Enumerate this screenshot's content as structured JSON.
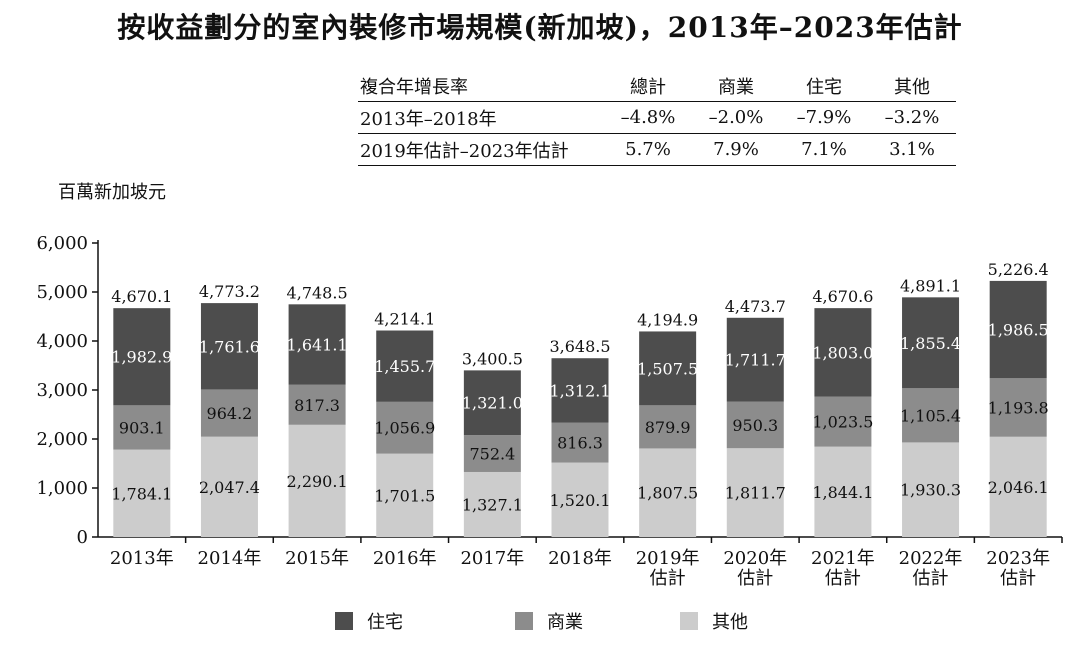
{
  "title": "按收益劃分的室內裝修市場規模(新加坡)，2013年–2023年估計",
  "cagr_table": {
    "headers": [
      "複合年增長率",
      "總計",
      "商業",
      "住宅",
      "其他"
    ],
    "rows": [
      [
        "2013年–2018年",
        "–4.8%",
        "–2.0%",
        "–7.9%",
        "–3.2%"
      ],
      [
        "2019年估計–2023年估計",
        "5.7%",
        "7.9%",
        "7.1%",
        "3.1%"
      ]
    ]
  },
  "colors": {
    "住宅": "#4d4d4d",
    "商業": "#8c8c8c",
    "其他": "#cccccc"
  },
  "chart_data": {
    "type": "bar",
    "stacked": true,
    "ylabel": "百萬新加坡元",
    "ylim": [
      0,
      6000
    ],
    "yticks": [
      "0",
      "1,000",
      "2,000",
      "3,000",
      "4,000",
      "5,000",
      "6,000"
    ],
    "categories": [
      "2013年",
      "2014年",
      "2015年",
      "2016年",
      "2017年",
      "2018年",
      "2019年\n估計",
      "2020年\n估計",
      "2021年\n估計",
      "2022年\n估計",
      "2023年\n估計"
    ],
    "series": [
      {
        "name": "其他",
        "values": [
          1784.1,
          2047.4,
          2290.1,
          1701.5,
          1327.1,
          1520.1,
          1807.5,
          1811.7,
          1844.1,
          1930.3,
          2046.1
        ],
        "labels": [
          "1,784.1",
          "2,047.4",
          "2,290.1",
          "1,701.5",
          "1,327.1",
          "1,520.1",
          "1,807.5",
          "1,811.7",
          "1,844.1",
          "1,930.3",
          "2,046.1"
        ]
      },
      {
        "name": "商業",
        "values": [
          903.1,
          964.2,
          817.3,
          1056.9,
          752.4,
          816.3,
          879.9,
          950.3,
          1023.5,
          1105.4,
          1193.8
        ],
        "labels": [
          "903.1",
          "964.2",
          "817.3",
          "1,056.9",
          "752.4",
          "816.3",
          "879.9",
          "950.3",
          "1,023.5",
          "1,105.4",
          "1,193.8"
        ]
      },
      {
        "name": "住宅",
        "values": [
          1982.9,
          1761.6,
          1641.1,
          1455.7,
          1321.0,
          1312.1,
          1507.5,
          1711.7,
          1803.0,
          1855.4,
          1986.5
        ],
        "labels": [
          "1,982.9",
          "1,761.6",
          "1,641.1",
          "1,455.7",
          "1,321.0",
          "1,312.1",
          "1,507.5",
          "1,711.7",
          "1,803.0",
          "1,855.4",
          "1,986.5"
        ]
      }
    ],
    "totals": [
      4670.1,
      4773.2,
      4748.5,
      4214.1,
      3400.5,
      3648.5,
      4194.9,
      4473.7,
      4670.6,
      4891.1,
      5226.4
    ],
    "total_labels": [
      "4,670.1",
      "4,773.2",
      "4,748.5",
      "4,214.1",
      "3,400.5",
      "3,648.5",
      "4,194.9",
      "4,473.7",
      "4,670.6",
      "4,891.1",
      "5,226.4"
    ],
    "legend": [
      "住宅",
      "商業",
      "其他"
    ],
    "legend_position": "bottom",
    "grid": false
  }
}
